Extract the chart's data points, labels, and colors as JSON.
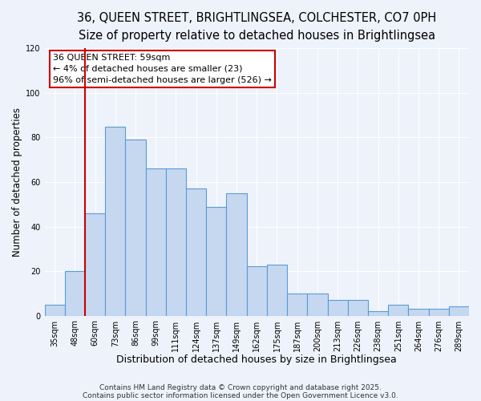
{
  "title1": "36, QUEEN STREET, BRIGHTLINGSEA, COLCHESTER, CO7 0PH",
  "title2": "Size of property relative to detached houses in Brightlingsea",
  "xlabel": "Distribution of detached houses by size in Brightlingsea",
  "ylabel": "Number of detached properties",
  "bar_labels": [
    "35sqm",
    "48sqm",
    "60sqm",
    "73sqm",
    "86sqm",
    "99sqm",
    "111sqm",
    "124sqm",
    "137sqm",
    "149sqm",
    "162sqm",
    "175sqm",
    "187sqm",
    "200sqm",
    "213sqm",
    "226sqm",
    "238sqm",
    "251sqm",
    "264sqm",
    "276sqm",
    "289sqm"
  ],
  "heights": [
    5,
    20,
    46,
    85,
    79,
    66,
    66,
    57,
    49,
    55,
    22,
    23,
    10,
    10,
    7,
    7,
    2,
    5,
    3,
    3,
    4
  ],
  "bar_color": "#c5d8f0",
  "bar_edge_color": "#5b9bd5",
  "bar_edge_width": 0.8,
  "vline_color": "#cc0000",
  "annotation_title": "36 QUEEN STREET: 59sqm",
  "annotation_line1": "← 4% of detached houses are smaller (23)",
  "annotation_line2": "96% of semi-detached houses are larger (526) →",
  "annotation_box_color": "#ffffff",
  "annotation_box_edge": "#cc0000",
  "ylim": [
    0,
    120
  ],
  "yticks": [
    0,
    20,
    40,
    60,
    80,
    100,
    120
  ],
  "background_color": "#eef2fb",
  "grid_color": "#ffffff",
  "footnote1": "Contains HM Land Registry data © Crown copyright and database right 2025.",
  "footnote2": "Contains public sector information licensed under the Open Government Licence v3.0.",
  "title1_fontsize": 10.5,
  "title2_fontsize": 9.5,
  "xlabel_fontsize": 9,
  "ylabel_fontsize": 8.5,
  "tick_fontsize": 7,
  "annotation_fontsize": 8,
  "footnote_fontsize": 6.5
}
